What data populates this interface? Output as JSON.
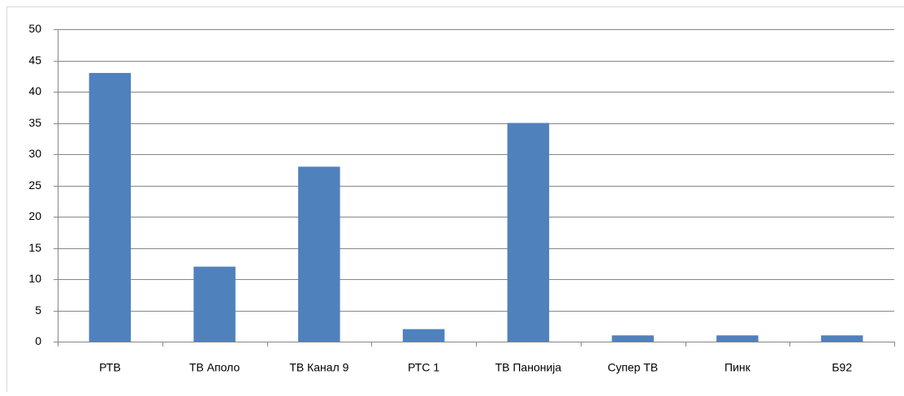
{
  "chart_data": {
    "type": "bar",
    "categories": [
      "РТВ",
      "ТВ Аполо",
      "ТВ Канал 9",
      "РТС 1",
      "ТВ Панонија",
      "Супер ТВ",
      "Пинк",
      "Б92"
    ],
    "values": [
      43,
      12,
      28,
      2,
      35,
      1,
      1,
      1
    ],
    "color": "#4f81bd",
    "ylim": [
      0,
      50
    ],
    "yticks": [
      0,
      5,
      10,
      15,
      20,
      25,
      30,
      35,
      40,
      45,
      50
    ],
    "grid": true
  }
}
